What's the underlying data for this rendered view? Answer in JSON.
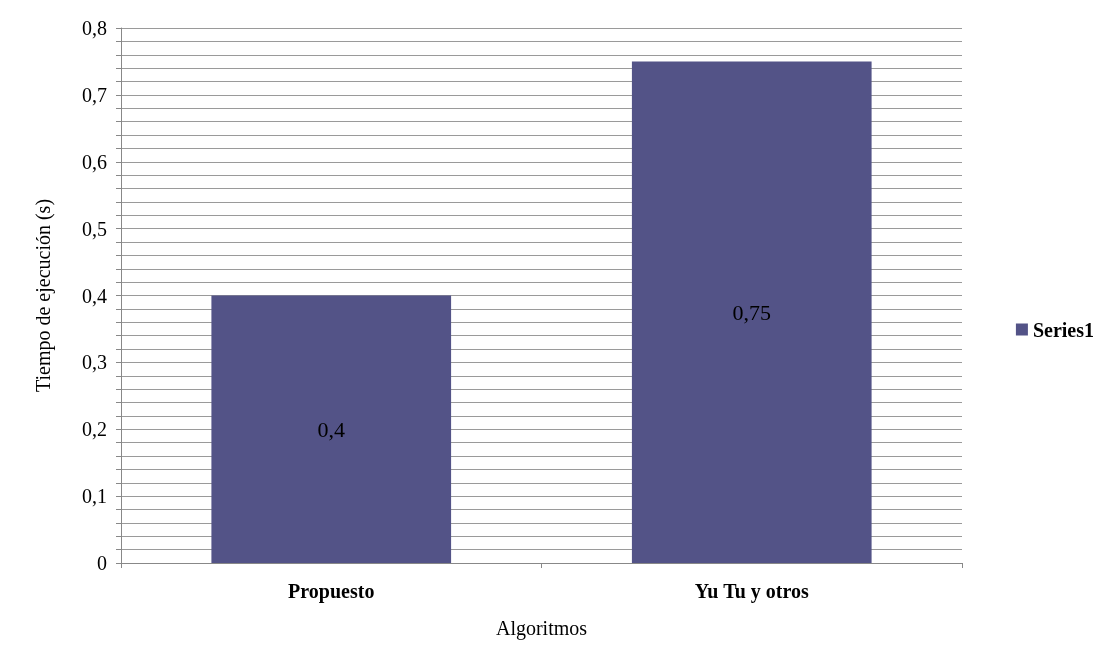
{
  "chart_data": {
    "type": "bar",
    "xlabel": "Algoritmos",
    "ylabel": "Tiempo de ejecución (s)",
    "categories": [
      "Propuesto",
      "Yu Tu y otros"
    ],
    "series": [
      {
        "name": "Series1",
        "color": "#535387",
        "values": [
          0.4,
          0.75
        ],
        "value_labels": [
          "0,4",
          "0,75"
        ]
      }
    ],
    "ylim": [
      0,
      0.8
    ],
    "yticks": [
      {
        "value": 0,
        "label": "0"
      },
      {
        "value": 0.02,
        "label": null
      },
      {
        "value": 0.04,
        "label": null
      },
      {
        "value": 0.06,
        "label": null
      },
      {
        "value": 0.08,
        "label": null
      },
      {
        "value": 0.1,
        "label": "0,1"
      },
      {
        "value": 0.12,
        "label": null
      },
      {
        "value": 0.14,
        "label": null
      },
      {
        "value": 0.16,
        "label": null
      },
      {
        "value": 0.18,
        "label": null
      },
      {
        "value": 0.2,
        "label": "0,2"
      },
      {
        "value": 0.22,
        "label": null
      },
      {
        "value": 0.24,
        "label": null
      },
      {
        "value": 0.26,
        "label": null
      },
      {
        "value": 0.28,
        "label": null
      },
      {
        "value": 0.3,
        "label": "0,3"
      },
      {
        "value": 0.32,
        "label": null
      },
      {
        "value": 0.34,
        "label": null
      },
      {
        "value": 0.36,
        "label": null
      },
      {
        "value": 0.38,
        "label": null
      },
      {
        "value": 0.4,
        "label": "0,4"
      },
      {
        "value": 0.42,
        "label": null
      },
      {
        "value": 0.44,
        "label": null
      },
      {
        "value": 0.46,
        "label": null
      },
      {
        "value": 0.48,
        "label": null
      },
      {
        "value": 0.5,
        "label": "0,5"
      },
      {
        "value": 0.52,
        "label": null
      },
      {
        "value": 0.54,
        "label": null
      },
      {
        "value": 0.56,
        "label": null
      },
      {
        "value": 0.58,
        "label": null
      },
      {
        "value": 0.6,
        "label": "0,6"
      },
      {
        "value": 0.62,
        "label": null
      },
      {
        "value": 0.64,
        "label": null
      },
      {
        "value": 0.66,
        "label": null
      },
      {
        "value": 0.68,
        "label": null
      },
      {
        "value": 0.7,
        "label": "0,7"
      },
      {
        "value": 0.72,
        "label": null
      },
      {
        "value": 0.74,
        "label": null
      },
      {
        "value": 0.76,
        "label": null
      },
      {
        "value": 0.78,
        "label": null
      },
      {
        "value": 0.8,
        "label": "0,8"
      }
    ],
    "grid": true,
    "legend": "right"
  }
}
